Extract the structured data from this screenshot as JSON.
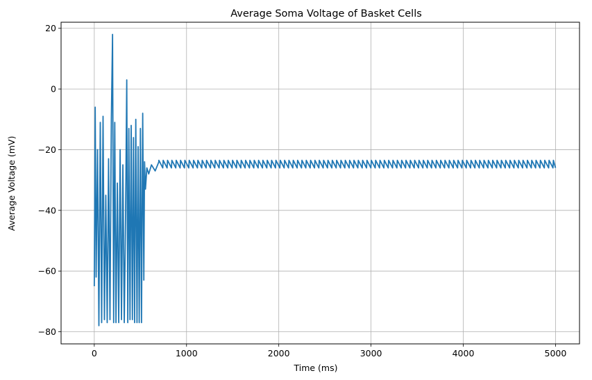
{
  "chart_data": {
    "type": "line",
    "title": "Average Soma Voltage of Basket Cells",
    "xlabel": "Time (ms)",
    "ylabel": "Average Voltage (mV)",
    "xlim": [
      -360,
      5260
    ],
    "ylim": [
      -84,
      22
    ],
    "x_ticks": [
      0,
      1000,
      2000,
      3000,
      4000,
      5000
    ],
    "y_ticks": [
      -80,
      -60,
      -40,
      -20,
      0,
      20
    ],
    "grid": true,
    "line_color": "#1f77b4",
    "series": [
      {
        "x": [
          0,
          10,
          20,
          35,
          50,
          65,
          80,
          95,
          110,
          125,
          140,
          155,
          170,
          185,
          198,
          210,
          222,
          235,
          250,
          265,
          280,
          295,
          310,
          325,
          340,
          352,
          363,
          375,
          387,
          400,
          413,
          425,
          437,
          450,
          463,
          475,
          487,
          500,
          512,
          525,
          537,
          545,
          555,
          570,
          590,
          620,
          660,
          700
        ],
        "y": [
          -65,
          -6,
          -62,
          -20,
          -78,
          -11,
          -77,
          -9,
          -76,
          -35,
          -77,
          -23,
          -76,
          -10,
          18,
          -77,
          -11,
          -77,
          -31,
          -77,
          -20,
          -76,
          -25,
          -77,
          -40,
          3,
          -77,
          -13,
          -76,
          -12,
          -76,
          -16,
          -77,
          -10,
          -77,
          -19,
          -77,
          -13,
          -77,
          -8,
          -63,
          -24,
          -33,
          -26,
          -28,
          -25,
          -27,
          -24
        ]
      }
    ],
    "oscillation": {
      "start": 700,
      "end": 5000,
      "period": 47,
      "peak": -23.5,
      "trough": -26
    }
  }
}
